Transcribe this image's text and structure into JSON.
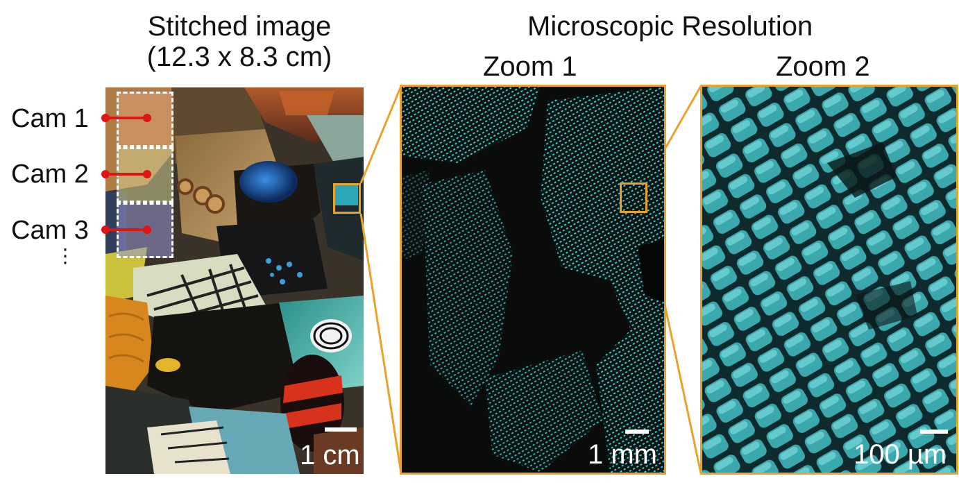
{
  "titles": {
    "stitched_line1": "Stitched image",
    "stitched_line2": "(12.3 x 8.3 cm)",
    "microscopic": "Microscopic Resolution",
    "zoom1": "Zoom 1",
    "zoom2": "Zoom 2"
  },
  "cameras": [
    "Cam 1",
    "Cam 2",
    "Cam 3"
  ],
  "more_indicator": "⋮",
  "scale_bars": {
    "stitched": "1 cm",
    "zoom1": "1 mm",
    "zoom2": "100 µm"
  },
  "colors": {
    "zoom_frame": "#e9a22b",
    "camera_marker": "#e01414",
    "tile_outline": "#ffffff"
  }
}
